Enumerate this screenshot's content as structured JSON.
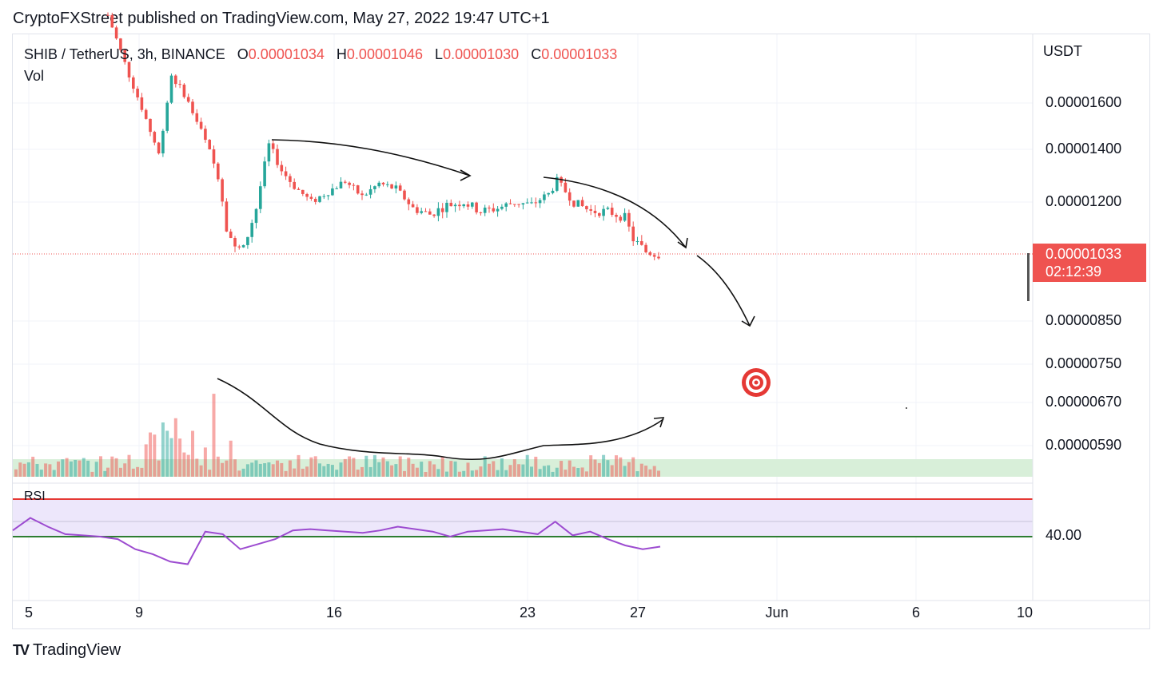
{
  "header": {
    "publish_line": "CryptoFXStreet published on TradingView.com, May 27, 2022 19:47 UTC+1"
  },
  "legend": {
    "symbol": "SHIB / TetherUS, 3h, BINANCE",
    "o_label": "O",
    "o_value": "0.00001034",
    "h_label": "H",
    "h_value": "0.00001046",
    "l_label": "L",
    "l_value": "0.00001030",
    "c_label": "C",
    "c_value": "0.00001033",
    "vol_label": "Vol"
  },
  "rsi_label": "RSI",
  "currency": "USDT",
  "price_tag": {
    "price": "0.00001033",
    "countdown": "02:12:39"
  },
  "footer": {
    "brand": "TradingView"
  },
  "colors": {
    "up": "#26a69a",
    "down": "#ef5350",
    "rsi_line": "#9c4bd0",
    "rsi_band": "#ede7fb",
    "vol_zone": "#d8efd9",
    "upper_band": "#e53935",
    "lower_band": "#2e7d32"
  },
  "chart_data": {
    "type": "candlestick",
    "timeframe": "3h",
    "y_axis_labels": [
      "0.00001600",
      "0.00001400",
      "0.00001200",
      "0.00000850",
      "0.00000750",
      "0.00000670",
      "0.00000590"
    ],
    "y_axis_values": [
      1.6e-05,
      1.4e-05,
      1.2e-05,
      8.5e-06,
      7.5e-06,
      6.7e-06,
      5.9e-06
    ],
    "x_axis_labels": [
      "5",
      "9",
      "16",
      "23",
      "27",
      "Jun",
      "6",
      "10"
    ],
    "last_price": 1.033e-05,
    "price_series_approx": [
      [
        0,
        1.98e-05
      ],
      [
        5,
        1.72e-05
      ],
      [
        8,
        1.58e-05
      ],
      [
        12,
        1.38e-05
      ],
      [
        15,
        1.72e-05
      ],
      [
        18,
        1.64e-05
      ],
      [
        22,
        1.48e-05
      ],
      [
        26,
        1.3e-05
      ],
      [
        28,
        1.12e-05
      ],
      [
        30,
        1.05e-05
      ],
      [
        32,
        1.05e-05
      ],
      [
        35,
        1.18e-05
      ],
      [
        38,
        1.42e-05
      ],
      [
        41,
        1.32e-05
      ],
      [
        44,
        1.26e-05
      ],
      [
        48,
        1.2e-05
      ],
      [
        52,
        1.24e-05
      ],
      [
        56,
        1.28e-05
      ],
      [
        60,
        1.22e-05
      ],
      [
        64,
        1.27e-05
      ],
      [
        68,
        1.25e-05
      ],
      [
        72,
        1.18e-05
      ],
      [
        76,
        1.16e-05
      ],
      [
        80,
        1.19e-05
      ],
      [
        84,
        1.2e-05
      ],
      [
        88,
        1.17e-05
      ],
      [
        92,
        1.18e-05
      ],
      [
        96,
        1.2e-05
      ],
      [
        100,
        1.19e-05
      ],
      [
        104,
        1.23e-05
      ],
      [
        106,
        1.28e-05
      ],
      [
        110,
        1.2e-05
      ],
      [
        114,
        1.17e-05
      ],
      [
        118,
        1.17e-05
      ],
      [
        122,
        1.15e-05
      ],
      [
        124,
        1.08e-05
      ],
      [
        127,
        1.04e-05
      ],
      [
        130,
        1.033e-05
      ]
    ],
    "rsi": {
      "upper_level": 70,
      "lower_level": 30,
      "label_value": "40.00",
      "series_approx": [
        45,
        55,
        48,
        42,
        41,
        40,
        38,
        30,
        26,
        20,
        18,
        44,
        42,
        30,
        34,
        38,
        45,
        46,
        45,
        44,
        43,
        45,
        48,
        46,
        44,
        40,
        44,
        45,
        46,
        44,
        42,
        52,
        41,
        44,
        38,
        33,
        30,
        32
      ]
    }
  }
}
